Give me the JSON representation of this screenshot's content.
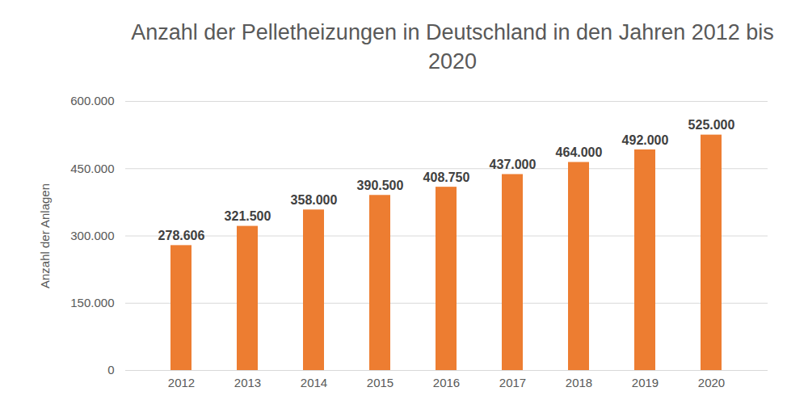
{
  "chart_data": {
    "type": "bar",
    "title": "Anzahl der Pelletheizungen in Deutschland in den Jahren 2012 bis 2020",
    "y_label": "Anzahl der Anlagen",
    "categories": [
      "2012",
      "2013",
      "2014",
      "2015",
      "2016",
      "2017",
      "2018",
      "2019",
      "2020"
    ],
    "values": [
      278606,
      321500,
      358000,
      390500,
      408750,
      437000,
      464000,
      492000,
      525000
    ],
    "value_labels": [
      "278.606",
      "321.500",
      "358.000",
      "390.500",
      "408.750",
      "437.000",
      "464.000",
      "492.000",
      "525.000"
    ],
    "data_labels": true,
    "color": "#ed7d31",
    "ylim": [
      0,
      600000
    ],
    "yticks": [
      0,
      {
        "value": 150000,
        "label": "150.000"
      },
      {
        "value": 300000,
        "label": "300.000"
      },
      {
        "value": 450000,
        "label": "450.000"
      },
      {
        "value": 600000,
        "label": "600.000"
      }
    ],
    "grid": true
  }
}
